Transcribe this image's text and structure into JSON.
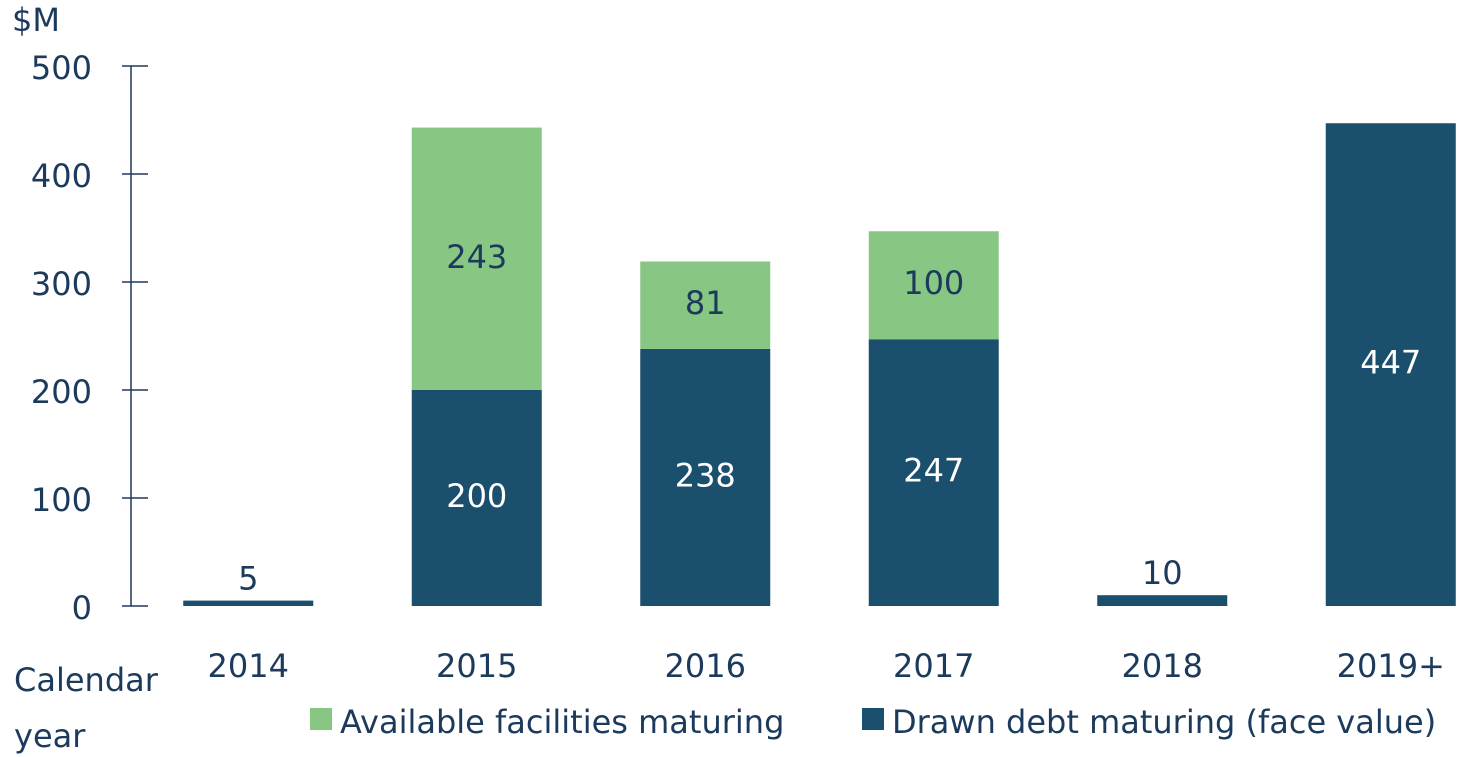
{
  "chart_data": {
    "type": "stacked_bar",
    "y_label": "$M",
    "x_label": [
      "Calendar",
      "year"
    ],
    "categories": [
      "2014",
      "2015",
      "2016",
      "2017",
      "2018",
      "2019+"
    ],
    "series": [
      {
        "name": "Drawn debt maturing (face value)",
        "color": "#1b4f6e",
        "values": [
          5,
          200,
          238,
          247,
          10,
          447
        ]
      },
      {
        "name": "Available facilities maturing",
        "color": "#88c684",
        "values": [
          null,
          243,
          81,
          100,
          null,
          null
        ]
      }
    ],
    "ylim": [
      0,
      500
    ],
    "yticks": [
      0,
      100,
      200,
      300,
      400,
      500
    ]
  }
}
